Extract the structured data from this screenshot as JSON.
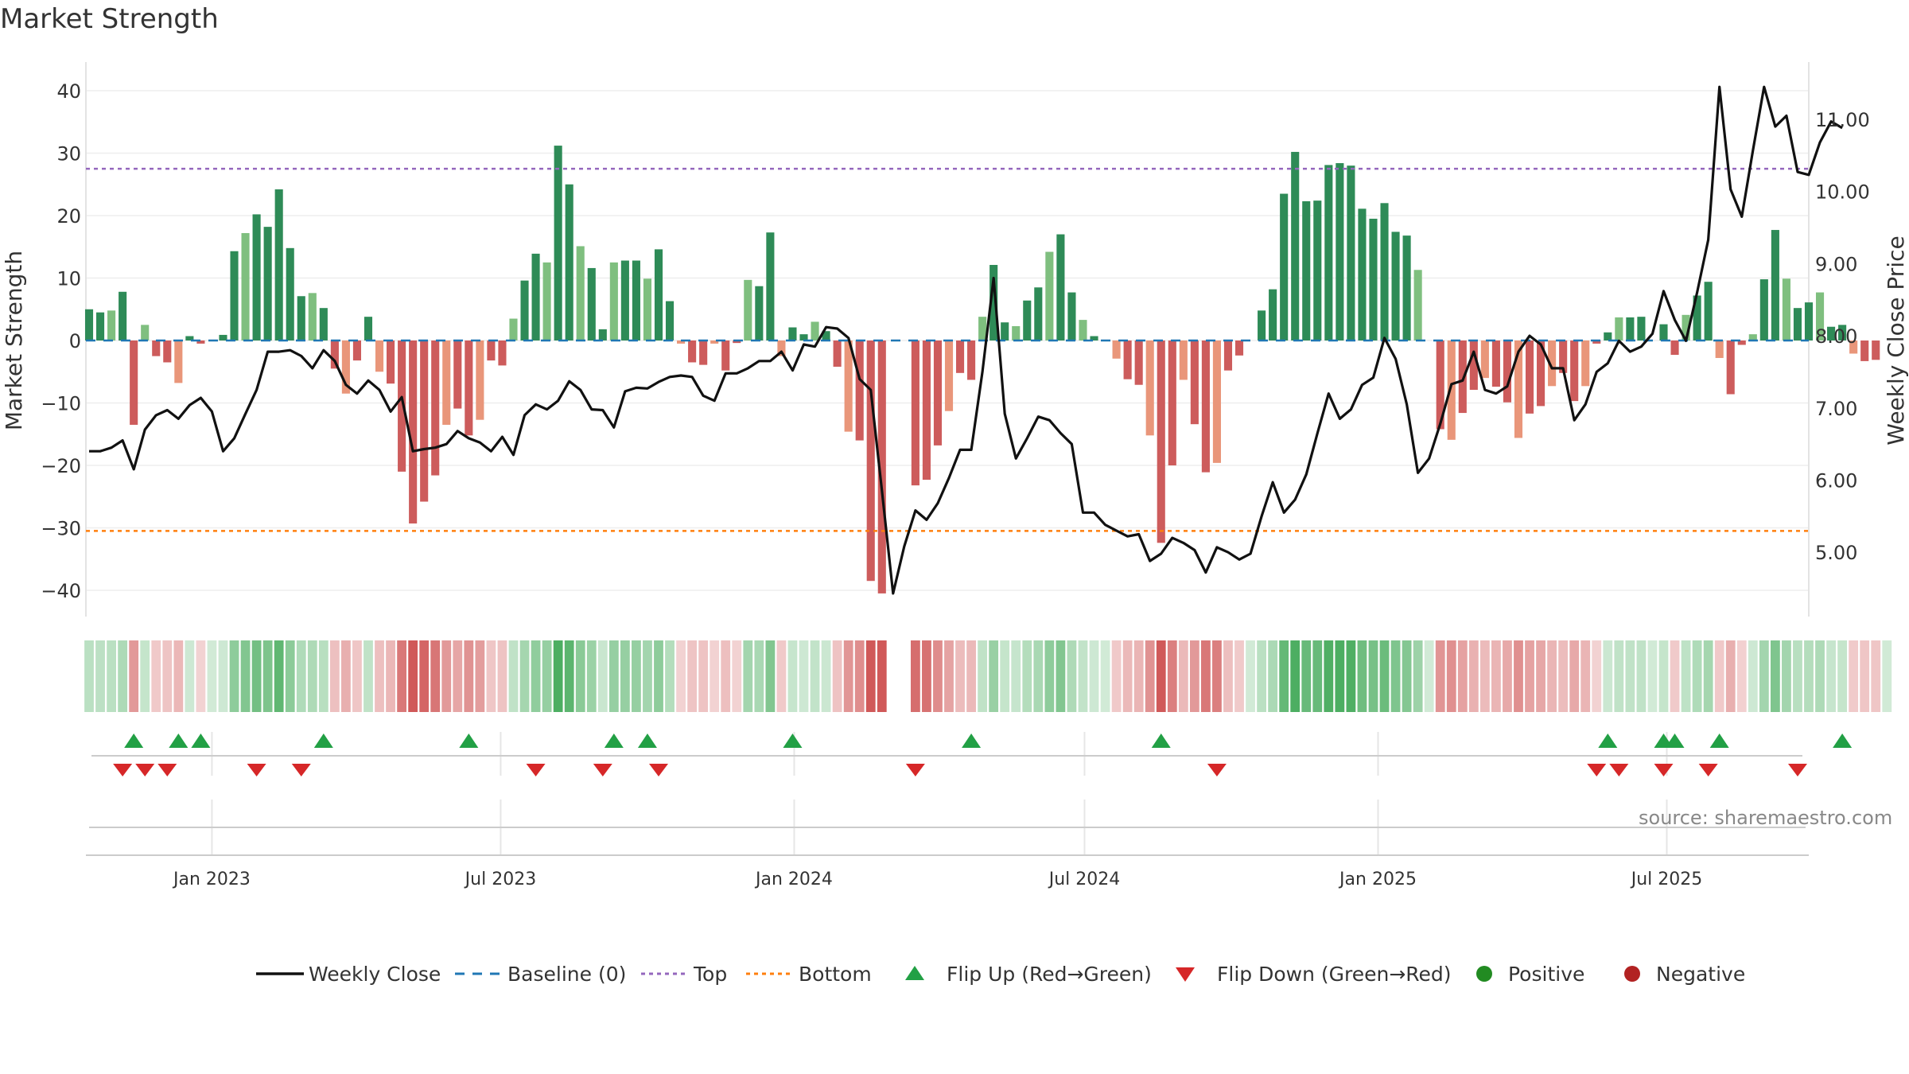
{
  "chart_data": {
    "type": "bar",
    "title": "Market Strength",
    "ylabel": "Market Strength",
    "y2label": "Weekly Close Price",
    "ylim": [
      -44,
      44
    ],
    "y2lim": [
      4.4,
      11.9
    ],
    "yticks": [
      40,
      30,
      20,
      10,
      0,
      -10,
      -20,
      -30,
      -40
    ],
    "yticklabels": [
      "40",
      "30",
      "20",
      "10",
      "0",
      "−10",
      "−20",
      "−30",
      "−40"
    ],
    "y2ticks": [
      11,
      10,
      9,
      8,
      7,
      6,
      5
    ],
    "y2ticklabels": [
      "11.00",
      "10.00",
      "9.00",
      "8.00",
      "7.00",
      "6.00",
      "5.00"
    ],
    "xlim": [
      "2022-10-14",
      "2025-09-28"
    ],
    "xticks": [
      "2023-01-01",
      "2023-07-01",
      "2024-01-01",
      "2024-07-01",
      "2025-01-01",
      "2025-07-01"
    ],
    "xticklabels": [
      "Jan 2023",
      "Jul 2023",
      "Jan 2024",
      "Jul 2024",
      "Jan 2025",
      "Jul 2025"
    ],
    "week_start": "2022-10-16",
    "top_level": 27.5,
    "bottom_level": -30.5,
    "baseline": 0,
    "source": "source: sharemaestro.com",
    "legend_position": "bottom",
    "legend": [
      {
        "label": "Weekly Close",
        "kind": "line"
      },
      {
        "label": "Baseline (0)",
        "kind": "dash"
      },
      {
        "label": "Top",
        "kind": "dot-purple"
      },
      {
        "label": "Bottom",
        "kind": "dot-orange"
      },
      {
        "label": "Flip Up (Red→Green)",
        "kind": "tri-up"
      },
      {
        "label": "Flip Down (Green→Red)",
        "kind": "tri-down"
      },
      {
        "label": "Positive",
        "kind": "circle-green"
      },
      {
        "label": "Negative",
        "kind": "circle-red"
      }
    ],
    "colors": {
      "pos_strong": "#2e8b57",
      "pos_weak": "#7fbf7f",
      "neg_strong": "#cd5c5c",
      "neg_weak": "#e9967a",
      "line": "#111111",
      "baseline": "#1f77b4",
      "top": "#9467bd",
      "bottom": "#ff7f0e",
      "flip_up": "#22a045",
      "flip_down": "#d62728",
      "positive": "#228b22",
      "negative": "#b22222"
    },
    "strength": [
      5,
      4.5,
      4.8,
      7.8,
      -13.5,
      2.5,
      -2.5,
      -3.5,
      -6.8,
      0.7,
      -0.5,
      0,
      0.9,
      14.3,
      17.2,
      20.2,
      18.2,
      24.2,
      14.8,
      7.1,
      7.6,
      5.2,
      -4.5,
      -8.5,
      -3.2,
      3.8,
      -5,
      -6.9,
      -21,
      -29.3,
      -25.8,
      -21.6,
      -13.5,
      -10.9,
      -15.2,
      -12.7,
      -3.2,
      -4,
      3.5,
      9.6,
      13.9,
      12.5,
      31.2,
      25,
      15.1,
      11.6,
      1.8,
      12.5,
      12.8,
      12.8,
      9.9,
      14.6,
      6.3,
      -0.5,
      -3.5,
      -3.9,
      -0.5,
      -4.8,
      -0.4,
      9.7,
      8.7,
      17.3,
      -2.5,
      2.1,
      1,
      3,
      1.5,
      -4.2,
      -14.6,
      -16,
      -38.5,
      -40.5,
      0,
      0,
      -23.2,
      -22.3,
      -16.8,
      -11.3,
      -5.2,
      -6.3,
      3.8,
      12.1,
      2.9,
      2.3,
      6.4,
      8.5,
      14.2,
      17,
      7.7,
      3.3,
      0.7,
      0,
      -2.9,
      -6.2,
      -7.1,
      -15.2,
      -32.4,
      -20,
      -6.3,
      -13.4,
      -21.1,
      -19.6,
      -4.8,
      -2.4,
      0,
      4.8,
      8.2,
      23.5,
      30.2,
      22.3,
      22.4,
      28.1,
      28.4,
      28,
      21.1,
      19.5,
      22,
      17.4,
      16.8,
      11.3,
      0,
      -14.2,
      -15.9,
      -11.6,
      -7.9,
      -6,
      -7.4,
      -9.9,
      -15.6,
      -11.7,
      -10.5,
      -7.3,
      -5.2,
      -9.7,
      -7.3,
      -0.5,
      1.3,
      3.7,
      3.7,
      3.8,
      0,
      2.6,
      -2.3,
      4.1,
      7.2,
      9.4,
      -2.8,
      -8.6,
      -0.7,
      1,
      9.8,
      17.7,
      9.9,
      5.2,
      6.1,
      7.7,
      2.2,
      2.5,
      -2.1,
      -3.3,
      -3.1,
      0
    ],
    "weekly_close": [
      6.4,
      6.4,
      6.45,
      6.55,
      6.15,
      6.7,
      6.9,
      6.97,
      6.85,
      7.04,
      7.14,
      6.95,
      6.4,
      6.58,
      6.92,
      7.25,
      7.78,
      7.78,
      7.8,
      7.72,
      7.55,
      7.8,
      7.65,
      7.32,
      7.2,
      7.38,
      7.25,
      6.95,
      7.15,
      6.4,
      6.43,
      6.45,
      6.5,
      6.68,
      6.58,
      6.52,
      6.4,
      6.6,
      6.35,
      6.9,
      7.05,
      6.98,
      7.1,
      7.37,
      7.25,
      6.98,
      6.97,
      6.73,
      7.23,
      7.28,
      7.27,
      7.36,
      7.43,
      7.45,
      7.43,
      7.17,
      7.1,
      7.48,
      7.48,
      7.55,
      7.65,
      7.65,
      7.78,
      7.52,
      7.88,
      7.85,
      8.12,
      8.1,
      7.97,
      7.4,
      7.25,
      5.85,
      4.43,
      5.08,
      5.58,
      5.45,
      5.68,
      6.03,
      6.42,
      6.42,
      7.5,
      8.8,
      6.92,
      6.3,
      6.58,
      6.88,
      6.83,
      6.65,
      6.5,
      5.55,
      5.55,
      5.38,
      5.3,
      5.22,
      5.25,
      4.88,
      4.98,
      5.2,
      5.13,
      5.03,
      4.72,
      5.07,
      5,
      4.9,
      4.98,
      5.5,
      5.97,
      5.55,
      5.73,
      6.08,
      6.65,
      7.2,
      6.85,
      6.98,
      7.32,
      7.42,
      7.97,
      7.68,
      7.05,
      6.1,
      6.3,
      6.78,
      7.33,
      7.38,
      7.78,
      7.25,
      7.2,
      7.3,
      7.78,
      8,
      7.88,
      7.55,
      7.55,
      6.83,
      7.05,
      7.5,
      7.62,
      7.93,
      7.78,
      7.85,
      8.03,
      8.62,
      8.22,
      7.93,
      8.6,
      9.33,
      11.45,
      10.03,
      9.65,
      10.57,
      11.45,
      10.9,
      11.05,
      10.27,
      10.23,
      10.68,
      10.97,
      10.88
    ],
    "flip_up_weeks": [
      4,
      8,
      10,
      21,
      34,
      47,
      50,
      63,
      79,
      96,
      136,
      141,
      142,
      146,
      157
    ],
    "flip_down_weeks": [
      3,
      5,
      7,
      15,
      19,
      40,
      46,
      51,
      74,
      101,
      135,
      137,
      141,
      145,
      153
    ]
  }
}
